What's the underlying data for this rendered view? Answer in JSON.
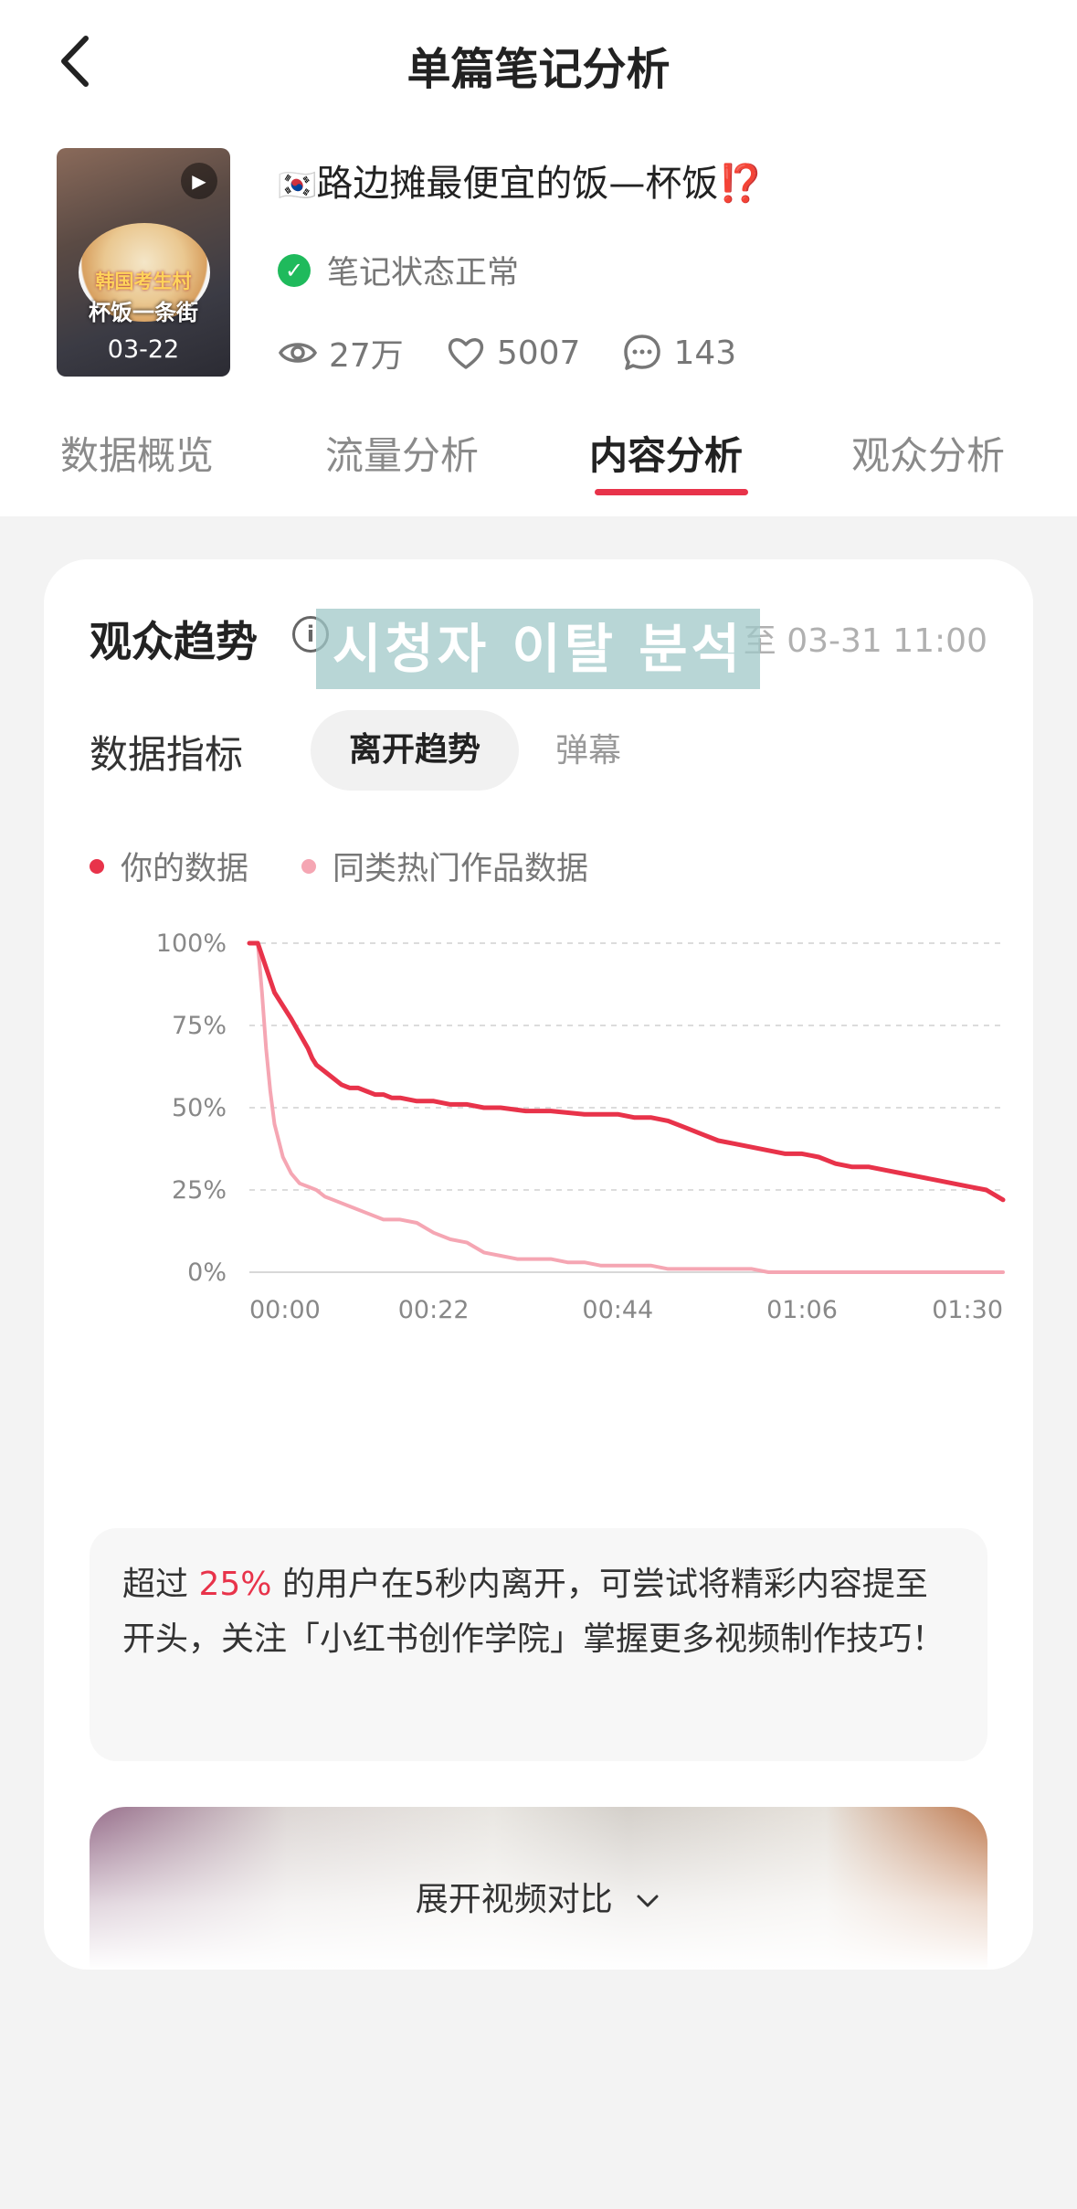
{
  "header": {
    "title": "单篇笔记分析"
  },
  "note": {
    "thumb_text1": "韩国考生村",
    "thumb_text2": "杯饭一条街",
    "thumb_date": "03-22",
    "flag": "🇰🇷",
    "title": "路边摊最便宜的饭—杯饭",
    "title_mark": "⁉️",
    "status": "笔记状态正常",
    "views": "27万",
    "likes": "5007",
    "comments": "143"
  },
  "tabs": [
    "数据概览",
    "流量分析",
    "内容分析",
    "观众分析"
  ],
  "active_tab": "内容分析",
  "card": {
    "title": "观众趋势",
    "range": "至 03-31 11:00",
    "overlay_text": "시청자 이탈 분석",
    "metric_label": "数据指标",
    "pill_active": "离开趋势",
    "pill_other": "弹幕"
  },
  "chart_data": {
    "type": "line",
    "title": "",
    "xlabel": "",
    "ylabel": "",
    "x_ticks": [
      "00:00",
      "00:22",
      "00:44",
      "01:06",
      "01:30"
    ],
    "y_ticks": [
      "0%",
      "25%",
      "50%",
      "75%",
      "100%"
    ],
    "ylim": [
      0,
      100
    ],
    "xlim_seconds": [
      0,
      90
    ],
    "grid": true,
    "legend_position": "top-left",
    "series": [
      {
        "name": "你的数据",
        "color": "#e8334a",
        "x_seconds": [
          0,
          1,
          3,
          5,
          7,
          7.5,
          8,
          9,
          10,
          11,
          12,
          13,
          14,
          15,
          16,
          17,
          18,
          20,
          22,
          24,
          26,
          28,
          30,
          33,
          36,
          40,
          44,
          46,
          48,
          50,
          52,
          54,
          56,
          58,
          60,
          62,
          64,
          66,
          68,
          70,
          72,
          74,
          76,
          78,
          80,
          82,
          84,
          86,
          88,
          90
        ],
        "values": [
          100,
          100,
          85,
          77,
          68,
          65,
          63,
          61,
          59,
          57,
          56,
          56,
          55,
          54,
          54,
          53,
          53,
          52,
          52,
          51,
          51,
          50,
          50,
          49,
          49,
          48,
          48,
          47,
          47,
          46,
          44,
          42,
          40,
          39,
          38,
          37,
          36,
          36,
          35,
          33,
          32,
          32,
          31,
          30,
          29,
          28,
          27,
          26,
          25,
          22
        ]
      },
      {
        "name": "同类热门作品数据",
        "color": "#f5a6b3",
        "x_seconds": [
          0,
          1,
          1.5,
          2,
          2.5,
          3,
          4,
          5,
          6,
          7,
          8,
          9,
          10,
          12,
          14,
          16,
          18,
          20,
          22,
          24,
          26,
          28,
          30,
          32,
          34,
          36,
          38,
          40,
          42,
          44,
          46,
          48,
          50,
          52,
          54,
          56,
          58,
          60,
          62,
          66,
          70,
          74,
          80,
          86,
          90
        ],
        "values": [
          100,
          100,
          85,
          68,
          55,
          45,
          35,
          30,
          27,
          26,
          25,
          23,
          22,
          20,
          18,
          16,
          16,
          15,
          12,
          10,
          9,
          6,
          5,
          4,
          4,
          4,
          3,
          3,
          2,
          2,
          2,
          2,
          1,
          1,
          1,
          1,
          1,
          1,
          0,
          0,
          0,
          0,
          0,
          0,
          0
        ]
      }
    ]
  },
  "tip": {
    "prefix": "超过",
    "highlight": "25%",
    "suffix": "的用户在5秒内离开，可尝试将精彩内容提至开头，关注「小红书创作学院」掌握更多视频制作技巧！"
  },
  "expand_label": "展开视频对比",
  "colors": {
    "accent": "#e8334a",
    "compare": "#f5a6b3",
    "status_ok": "#1fba5c"
  }
}
